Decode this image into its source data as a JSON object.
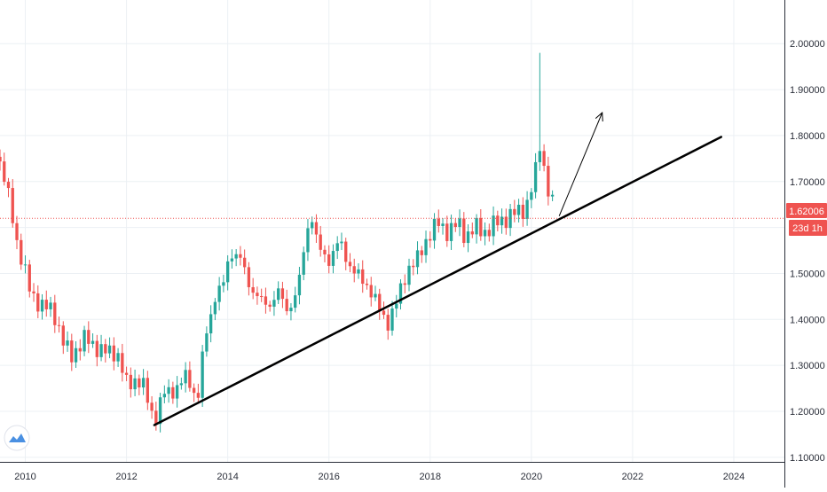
{
  "colors": {
    "up": "#26a69a",
    "down": "#ef5350",
    "grid": "#ecf0f4",
    "axis_text": "#2a2e39",
    "price_line": "#ef5350",
    "trendline": "#000000",
    "logo": "#2962ff"
  },
  "price_label": "1.62006",
  "countdown_label": "23d 1h",
  "icons": {
    "logo": "tradingview-logo-icon"
  },
  "chart_data": {
    "type": "candlestick",
    "title": "",
    "xlabel": "",
    "ylabel": "",
    "x_ticks": [
      "2010",
      "2012",
      "2014",
      "2016",
      "2018",
      "2020",
      "2022",
      "2024"
    ],
    "y_ticks": [
      "1.10000",
      "1.20000",
      "1.30000",
      "1.40000",
      "1.50000",
      "1.60000",
      "1.70000",
      "1.80000",
      "1.90000",
      "2.00000"
    ],
    "xlim": [
      2009.5,
      2025.0
    ],
    "ylim": [
      1.09,
      2.095
    ],
    "last_price": 1.62006,
    "grid": true,
    "anchors": [
      [
        2009.5,
        1.74
      ],
      [
        2009.62,
        1.69
      ],
      [
        2009.72,
        1.64
      ],
      [
        2009.85,
        1.56
      ],
      [
        2010.1,
        1.46
      ],
      [
        2010.3,
        1.43
      ],
      [
        2010.55,
        1.42
      ],
      [
        2010.75,
        1.35
      ],
      [
        2010.9,
        1.32
      ],
      [
        2011.2,
        1.36
      ],
      [
        2011.5,
        1.33
      ],
      [
        2011.8,
        1.33
      ],
      [
        2012.0,
        1.26
      ],
      [
        2012.2,
        1.27
      ],
      [
        2012.35,
        1.25
      ],
      [
        2012.55,
        1.18
      ],
      [
        2012.75,
        1.24
      ],
      [
        2013.0,
        1.25
      ],
      [
        2013.2,
        1.28
      ],
      [
        2013.4,
        1.22
      ],
      [
        2013.55,
        1.36
      ],
      [
        2013.75,
        1.45
      ],
      [
        2013.9,
        1.47
      ],
      [
        2014.05,
        1.55
      ],
      [
        2014.25,
        1.53
      ],
      [
        2014.45,
        1.47
      ],
      [
        2014.65,
        1.44
      ],
      [
        2014.8,
        1.43
      ],
      [
        2015.0,
        1.46
      ],
      [
        2015.15,
        1.42
      ],
      [
        2015.3,
        1.44
      ],
      [
        2015.45,
        1.5
      ],
      [
        2015.55,
        1.59
      ],
      [
        2015.65,
        1.63
      ],
      [
        2015.8,
        1.55
      ],
      [
        2016.0,
        1.53
      ],
      [
        2016.2,
        1.57
      ],
      [
        2016.4,
        1.52
      ],
      [
        2016.6,
        1.49
      ],
      [
        2016.8,
        1.47
      ],
      [
        2017.0,
        1.42
      ],
      [
        2017.15,
        1.39
      ],
      [
        2017.35,
        1.44
      ],
      [
        2017.55,
        1.51
      ],
      [
        2017.75,
        1.53
      ],
      [
        2017.95,
        1.58
      ],
      [
        2018.15,
        1.61
      ],
      [
        2018.35,
        1.59
      ],
      [
        2018.55,
        1.61
      ],
      [
        2018.7,
        1.58
      ],
      [
        2018.9,
        1.6
      ],
      [
        2019.1,
        1.59
      ],
      [
        2019.3,
        1.61
      ],
      [
        2019.5,
        1.62
      ],
      [
        2019.65,
        1.63
      ],
      [
        2019.85,
        1.64
      ],
      [
        2019.95,
        1.66
      ],
      [
        2020.08,
        1.72
      ],
      [
        2020.18,
        1.79
      ],
      [
        2020.3,
        1.69
      ],
      [
        2020.4,
        1.66
      ],
      [
        2020.48,
        1.62
      ]
    ],
    "spike": {
      "x": 2020.16,
      "high": 1.98
    },
    "trendline": {
      "from": [
        2012.55,
        1.17
      ],
      "to": [
        2023.75,
        1.797
      ]
    },
    "arrow": {
      "from": [
        2020.55,
        1.625
      ],
      "to": [
        2021.4,
        1.85
      ]
    }
  }
}
